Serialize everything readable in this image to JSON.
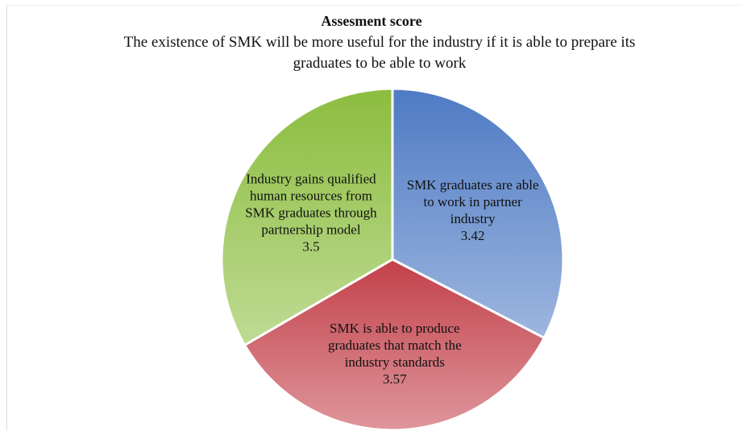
{
  "chart_data": {
    "type": "pie",
    "title": "Assesment score",
    "subtitle": "The existence of SMK will be more useful for the industry if it is able to prepare its graduates to be able to work",
    "categories": [
      "SMK graduates are able to work in partner industry",
      "SMK is able to produce graduates that match the industry standards",
      "Industry gains qualified human resources from SMK graduates through partnership model"
    ],
    "values": [
      3.42,
      3.57,
      3.5
    ],
    "colors": [
      "#4e7bc4",
      "#c3404a",
      "#8bbd3e"
    ]
  }
}
